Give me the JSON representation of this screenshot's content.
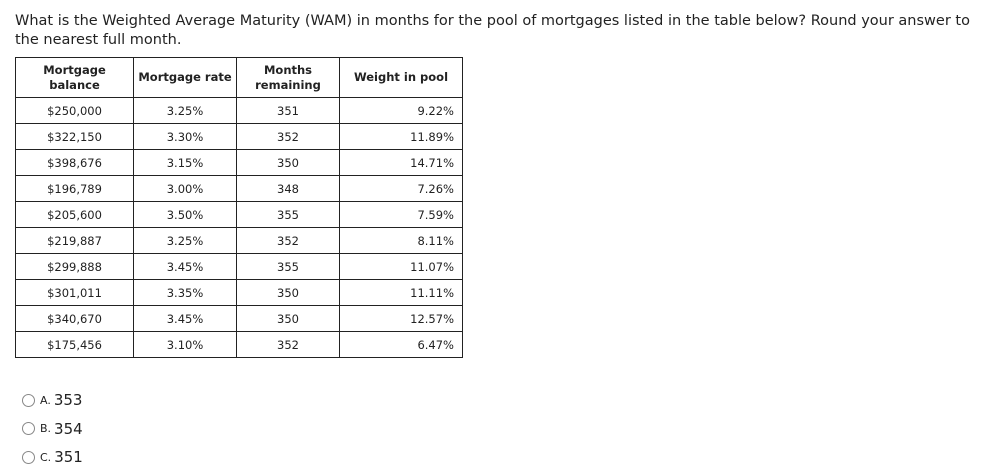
{
  "question": "What is the Weighted Average Maturity (WAM) in months for the pool of mortgages listed in the table below? Round your answer to the nearest full month.",
  "table": {
    "headers": [
      "Mortgage balance",
      "Mortgage rate",
      "Months remaining",
      "Weight in pool"
    ],
    "rows": [
      [
        "$250,000",
        "3.25%",
        "351",
        "9.22%"
      ],
      [
        "$322,150",
        "3.30%",
        "352",
        "11.89%"
      ],
      [
        "$398,676",
        "3.15%",
        "350",
        "14.71%"
      ],
      [
        "$196,789",
        "3.00%",
        "348",
        "7.26%"
      ],
      [
        "$205,600",
        "3.50%",
        "355",
        "7.59%"
      ],
      [
        "$219,887",
        "3.25%",
        "352",
        "8.11%"
      ],
      [
        "$299,888",
        "3.45%",
        "355",
        "11.07%"
      ],
      [
        "$301,011",
        "3.35%",
        "350",
        "11.11%"
      ],
      [
        "$340,670",
        "3.45%",
        "350",
        "12.57%"
      ],
      [
        "$175,456",
        "3.10%",
        "352",
        "6.47%"
      ]
    ]
  },
  "options": [
    {
      "letter": "A.",
      "value": "353"
    },
    {
      "letter": "B.",
      "value": "354"
    },
    {
      "letter": "C.",
      "value": "351"
    }
  ]
}
